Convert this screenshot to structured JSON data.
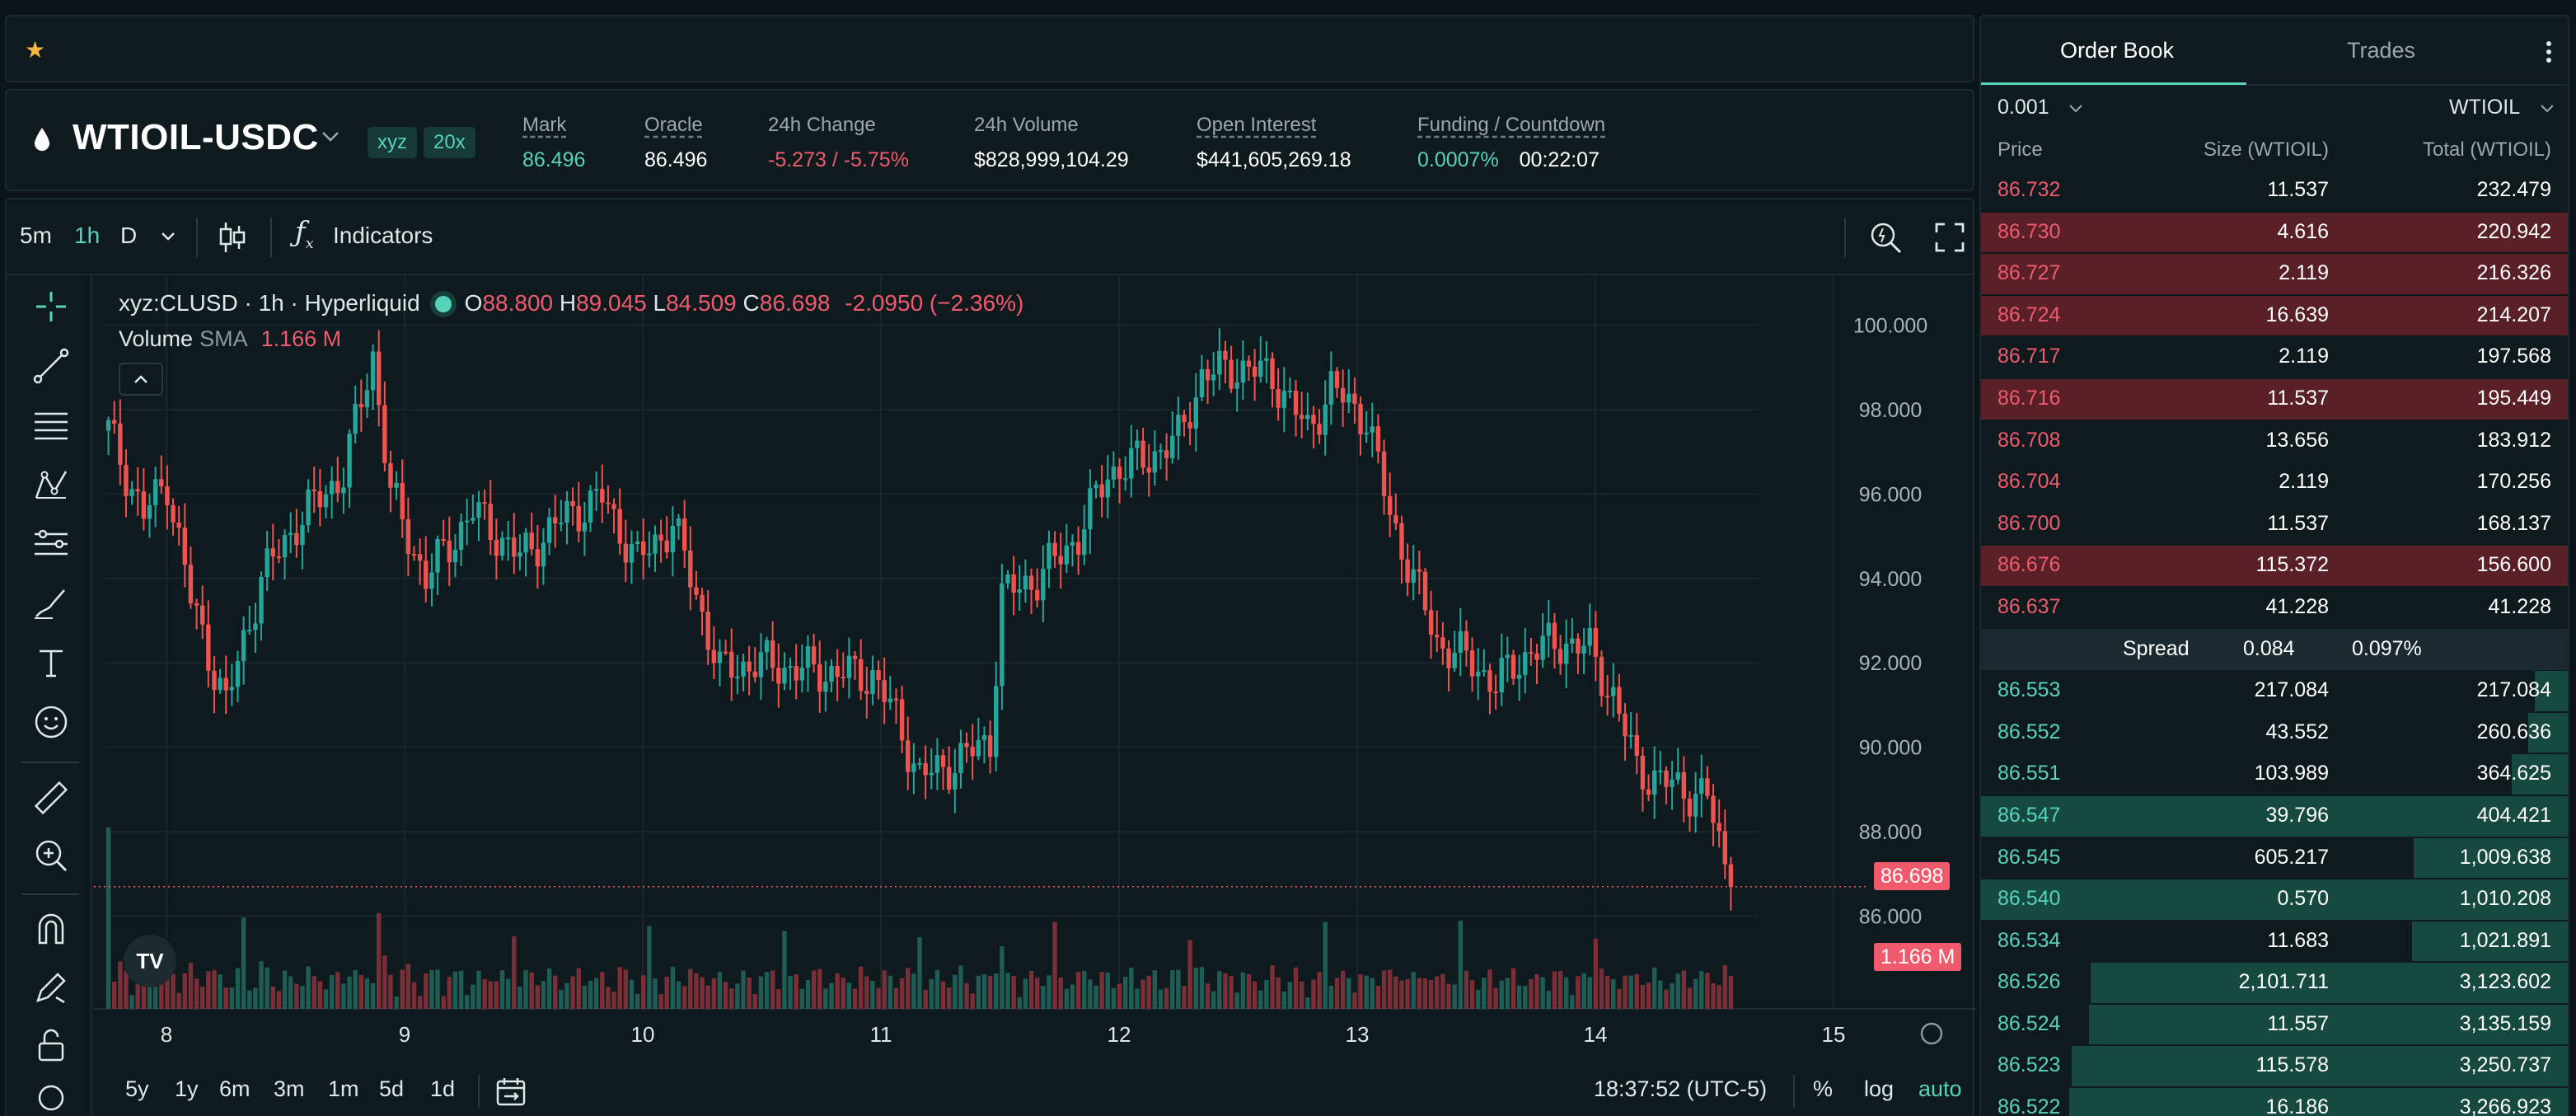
{
  "header": {
    "symbol": "WTIOIL-USDC",
    "badge_dex": "xyz",
    "badge_leverage": "20x",
    "stats": [
      {
        "label": "Mark",
        "value": "86.496"
      },
      {
        "label": "Oracle",
        "value": "86.496"
      },
      {
        "label": "24h Change",
        "value": "-5.273 / -5.75%"
      },
      {
        "label": "24h Volume",
        "value": "$828,999,104.29"
      },
      {
        "label": "Open Interest",
        "value": "$441,605,269.18"
      },
      {
        "label": "Funding / Countdown",
        "value": "0.0007%",
        "value2": "00:22:07"
      }
    ]
  },
  "toolbar": {
    "timeframes": [
      "5m",
      "1h",
      "D"
    ],
    "active_timeframe": "1h",
    "indicators_label": "Indicators"
  },
  "legend": {
    "series": "xyz:CLUSD · 1h · Hyperliquid",
    "o_label": "O",
    "o": "88.800",
    "h_label": "H",
    "h": "89.045",
    "l_label": "L",
    "l": "84.509",
    "c_label": "C",
    "c": "86.698",
    "change": "-2.0950 (−2.36%)",
    "volume_label": "Volume",
    "volume_ma": "SMA",
    "volume_value": "1.166 M"
  },
  "chart_data": {
    "type": "candlestick",
    "y_ticks": [
      "100.000",
      "98.000",
      "96.000",
      "94.000",
      "92.000",
      "90.000",
      "88.000",
      "86.000"
    ],
    "ylim": [
      84.0,
      100.4
    ],
    "x_ticks": [
      "8",
      "9",
      "10",
      "11",
      "12",
      "13",
      "14",
      "15"
    ],
    "last_price": "86.698",
    "last_volume": "1.166 M",
    "colors": {
      "up": "#26a69a",
      "down": "#ef5350"
    },
    "key_points": [
      [
        0,
        97.5
      ],
      [
        6,
        95.5
      ],
      [
        10,
        96.3
      ],
      [
        14,
        93.5
      ],
      [
        20,
        91.0
      ],
      [
        26,
        94.0
      ],
      [
        32,
        95.3
      ],
      [
        40,
        96.5
      ],
      [
        45,
        99.3
      ],
      [
        48,
        96.0
      ],
      [
        54,
        94.0
      ],
      [
        62,
        95.6
      ],
      [
        70,
        94.5
      ],
      [
        78,
        95.5
      ],
      [
        84,
        95.9
      ],
      [
        90,
        94.4
      ],
      [
        96,
        95.3
      ],
      [
        100,
        93.6
      ],
      [
        104,
        91.8
      ],
      [
        110,
        92.0
      ],
      [
        120,
        91.8
      ],
      [
        130,
        91.7
      ],
      [
        134,
        90.7
      ],
      [
        138,
        89.3
      ],
      [
        142,
        89.5
      ],
      [
        146,
        89.8
      ],
      [
        150,
        90.2
      ],
      [
        152,
        93.6
      ],
      [
        158,
        94.0
      ],
      [
        165,
        95.0
      ],
      [
        170,
        96.5
      ],
      [
        176,
        96.8
      ],
      [
        182,
        97.3
      ],
      [
        186,
        98.8
      ],
      [
        192,
        99.0
      ],
      [
        198,
        98.8
      ],
      [
        204,
        97.5
      ],
      [
        208,
        98.5
      ],
      [
        214,
        97.8
      ],
      [
        218,
        95.5
      ],
      [
        222,
        94.0
      ],
      [
        226,
        92.5
      ],
      [
        232,
        92.0
      ],
      [
        236,
        91.5
      ],
      [
        242,
        92.3
      ],
      [
        248,
        92.5
      ],
      [
        252,
        92.3
      ],
      [
        256,
        91.2
      ],
      [
        260,
        89.5
      ],
      [
        264,
        89.2
      ],
      [
        268,
        89.0
      ],
      [
        272,
        88.8
      ],
      [
        276,
        86.7
      ]
    ]
  },
  "bottom": {
    "ranges": [
      "5y",
      "1y",
      "6m",
      "3m",
      "1m",
      "5d",
      "1d"
    ],
    "clock": "18:37:52 (UTC-5)",
    "pct": "%",
    "log": "log",
    "auto": "auto"
  },
  "orderbook": {
    "tab_active": "Order Book",
    "tab_other": "Trades",
    "tick_size": "0.001",
    "unit": "WTIOIL",
    "col_price": "Price",
    "col_size": "Size (WTIOIL)",
    "col_total": "Total (WTIOIL)",
    "asks": [
      {
        "price": "86.732",
        "size": "11.537",
        "total": "232.479",
        "hl": false
      },
      {
        "price": "86.730",
        "size": "4.616",
        "total": "220.942",
        "hl": true
      },
      {
        "price": "86.727",
        "size": "2.119",
        "total": "216.326",
        "hl": true
      },
      {
        "price": "86.724",
        "size": "16.639",
        "total": "214.207",
        "hl": true
      },
      {
        "price": "86.717",
        "size": "2.119",
        "total": "197.568",
        "hl": false
      },
      {
        "price": "86.716",
        "size": "11.537",
        "total": "195.449",
        "hl": true
      },
      {
        "price": "86.708",
        "size": "13.656",
        "total": "183.912",
        "hl": false
      },
      {
        "price": "86.704",
        "size": "2.119",
        "total": "170.256",
        "hl": false
      },
      {
        "price": "86.700",
        "size": "11.537",
        "total": "168.137",
        "hl": false
      },
      {
        "price": "86.676",
        "size": "115.372",
        "total": "156.600",
        "hl": true
      },
      {
        "price": "86.637",
        "size": "41.228",
        "total": "41.228",
        "hl": false
      }
    ],
    "spread_label": "Spread",
    "spread_value": "0.084",
    "spread_pct": "0.097%",
    "bids": [
      {
        "price": "86.553",
        "size": "217.084",
        "total": "217.084",
        "hl": false
      },
      {
        "price": "86.552",
        "size": "43.552",
        "total": "260.636",
        "hl": false
      },
      {
        "price": "86.551",
        "size": "103.989",
        "total": "364.625",
        "hl": false
      },
      {
        "price": "86.547",
        "size": "39.796",
        "total": "404.421",
        "hl": true
      },
      {
        "price": "86.545",
        "size": "605.217",
        "total": "1,009.638",
        "hl": false
      },
      {
        "price": "86.540",
        "size": "0.570",
        "total": "1,010.208",
        "hl": true
      },
      {
        "price": "86.534",
        "size": "11.683",
        "total": "1,021.891",
        "hl": false
      },
      {
        "price": "86.526",
        "size": "2,101.711",
        "total": "3,123.602",
        "hl": false
      },
      {
        "price": "86.524",
        "size": "11.557",
        "total": "3,135.159",
        "hl": false
      },
      {
        "price": "86.523",
        "size": "115.578",
        "total": "3,250.737",
        "hl": false
      },
      {
        "price": "86.522",
        "size": "16.186",
        "total": "3,266.923",
        "hl": false
      }
    ]
  }
}
